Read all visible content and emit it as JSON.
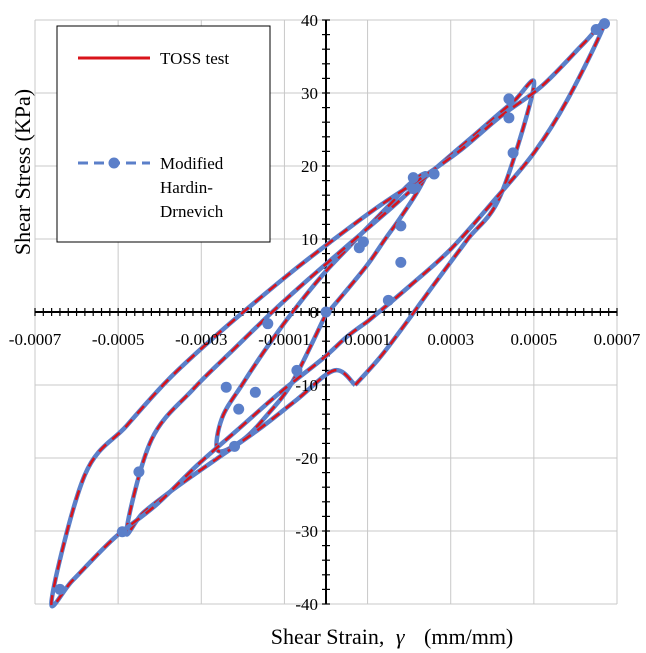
{
  "chart_data": {
    "type": "line",
    "xlabel_main": "Shear Strain,",
    "xlabel_symbol": "γ",
    "xlabel_unit": "(mm/mm)",
    "ylabel": "Shear Stress (KPa)",
    "xlim": [
      -0.0007,
      0.0007
    ],
    "ylim": [
      -40,
      40
    ],
    "x_ticks": [
      -0.0007,
      -0.0005,
      -0.0003,
      -0.0001,
      0.0001,
      0.0003,
      0.0005,
      0.0007
    ],
    "x_tick_labels": [
      "-0.0007",
      "-0.0005",
      "-0.0003",
      "-0.0001",
      "0.0001",
      "0.0003",
      "0.0005",
      "0.0007"
    ],
    "y_ticks": [
      -40,
      -30,
      -20,
      -10,
      0,
      10,
      20,
      30,
      40
    ],
    "y_tick_labels": [
      "-40",
      "-30",
      "-20",
      "-10",
      "0",
      "10",
      "20",
      "30",
      "40"
    ],
    "grid": true,
    "legend_position": "top-left",
    "colors": {
      "toss": "#d9141b",
      "model": "#5b7fc9"
    },
    "series": [
      {
        "name": "TOSS test",
        "style": "solid",
        "loops": [
          {
            "x": [
              -2e-06,
              5e-05,
              0.0001,
              0.00014,
              0.00018,
              0.00022,
              0.00024,
              0.0002,
              0.00015,
              0.0001,
              5e-05,
              0.0,
              -5e-05,
              -0.0001,
              -0.00015,
              -0.0002,
              -0.00025,
              -0.00026,
              -0.0002,
              -0.00014,
              -8e-05,
              -2e-06
            ],
            "y": [
              -0.5,
              3.0,
              6.5,
              9.8,
              13.0,
              16.5,
              19.0,
              17.5,
              14.5,
              11.6,
              8.6,
              5.6,
              2.2,
              -1.5,
              -5.5,
              -9.8,
              -14.5,
              -19.0,
              -17.5,
              -14.0,
              -9.5,
              -0.5
            ]
          },
          {
            "x": [
              7e-05,
              0.00013,
              0.00019,
              0.00026,
              0.00034,
              0.00042,
              0.0005,
              0.00045,
              0.00036,
              0.00026,
              0.00016,
              6e-05,
              -4e-05,
              -0.00012,
              -0.00022,
              -0.00032,
              -0.00042,
              -0.00048,
              -0.00044,
              -0.00036,
              -0.00026,
              -0.00016,
              -7e-05,
              2e-05,
              7e-05
            ],
            "y": [
              -10.0,
              -6.2,
              -1.7,
              3.8,
              9.9,
              16.0,
              31.0,
              28.8,
              24.4,
              19.5,
              14.4,
              9.5,
              4.6,
              0.5,
              -5.0,
              -10.6,
              -17.5,
              -30.0,
              -27.5,
              -24.0,
              -20.0,
              -16.0,
              -12.0,
              -8.0,
              -10.0
            ]
          },
          {
            "x": [
              0.0001,
              0.0002,
              0.0003,
              0.0004,
              0.0005,
              0.00058,
              0.00067,
              0.00062,
              0.00052,
              0.00042,
              0.00032,
              0.00022,
              0.00012,
              2e-05,
              -8e-05,
              -0.00018,
              -0.00028,
              -0.00038,
              -0.00048,
              -0.00058,
              -0.00066,
              -0.00061,
              -0.00051,
              -0.00041,
              -0.00031,
              -0.00021,
              -0.00011,
              -1e-05,
              5e-05,
              0.0001
            ],
            "y": [
              -1.3,
              3.5,
              8.6,
              15.0,
              21.8,
              29.0,
              39.5,
              36.8,
              31.0,
              26.8,
              22.0,
              18.0,
              14.2,
              10.0,
              5.6,
              0.9,
              -4.0,
              -9.3,
              -15.6,
              -22.3,
              -39.5,
              -36.8,
              -31.0,
              -26.5,
              -21.0,
              -16.0,
              -11.0,
              -6.5,
              -3.4,
              -1.3
            ]
          }
        ]
      },
      {
        "name": "Modified Hardin-Drnevich",
        "legend_label_lines": [
          "Modified",
          "Hardin-",
          "Drnevich"
        ],
        "style": "dashed",
        "marker": "circle",
        "markers": {
          "x": [
            0.00067,
            0.00065,
            0.00045,
            0.00044,
            0.00044,
            0.00026,
            0.00021,
            0.00021,
            0.00018,
            0.00018,
            0.00015,
            9e-05,
            8e-05,
            0.0,
            -7e-05,
            -0.00014,
            -0.00017,
            -0.00021,
            -0.00022,
            -0.00024,
            -0.00045,
            -0.00049,
            -0.00064
          ],
          "y": [
            39.5,
            38.7,
            21.8,
            26.6,
            29.2,
            18.9,
            18.4,
            16.9,
            11.8,
            6.8,
            1.6,
            9.6,
            8.8,
            0.0,
            -8.0,
            -1.6,
            -11.0,
            -13.3,
            -18.4,
            -10.3,
            -21.9,
            -30.1,
            -38.0
          ]
        }
      }
    ]
  }
}
